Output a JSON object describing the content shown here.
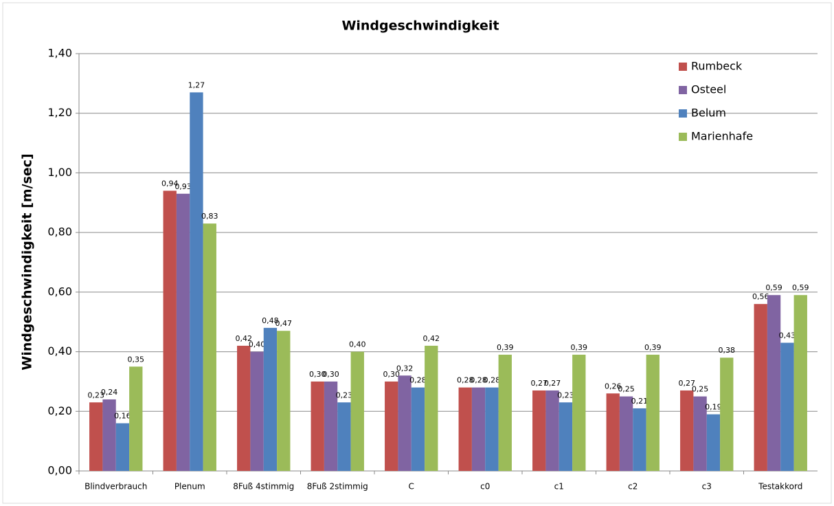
{
  "chart_data": {
    "type": "bar",
    "title": "Windgeschwindigkeit",
    "y_label": "Windgeschwindigkeit [m/sec]",
    "categories": [
      "Blindverbrauch",
      "Plenum",
      "8Fuß 4stimmig",
      "8Fuß 2stimmig",
      "C",
      "c0",
      "c1",
      "c2",
      "c3",
      "Testakkord"
    ],
    "series": [
      {
        "name": "Rumbeck",
        "color": "#c0504d",
        "values": [
          0.23,
          0.94,
          0.42,
          0.3,
          0.3,
          0.28,
          0.27,
          0.26,
          0.27,
          0.56
        ],
        "value_labels": [
          "0,23",
          "0,94",
          "0,42",
          "0,30",
          "0,30",
          "0,28",
          "0,27",
          "0,26",
          "0,27",
          "0,56"
        ]
      },
      {
        "name": "Osteel",
        "color": "#8064a2",
        "values": [
          0.24,
          0.93,
          0.4,
          0.3,
          0.32,
          0.28,
          0.27,
          0.25,
          0.25,
          0.59
        ],
        "value_labels": [
          "0,24",
          "0,93",
          "0,40",
          "0,30",
          "0,32",
          "0,28",
          "0,27",
          "0,25",
          "0,25",
          "0,59"
        ]
      },
      {
        "name": "Belum",
        "color": "#4f81bd",
        "values": [
          0.16,
          1.27,
          0.48,
          0.23,
          0.28,
          0.28,
          0.23,
          0.21,
          0.19,
          0.43
        ],
        "value_labels": [
          "0,16",
          "1,27",
          "0,48",
          "0,23",
          "0,28",
          "0,28",
          "0,23",
          "0,21",
          "0,19",
          "0,43"
        ]
      },
      {
        "name": "Marienhafe",
        "color": "#9bbb59",
        "values": [
          0.35,
          0.83,
          0.47,
          0.4,
          0.42,
          0.39,
          0.39,
          0.39,
          0.38,
          0.59
        ],
        "value_labels": [
          "0,35",
          "0,83",
          "0,47",
          "0,40",
          "0,42",
          "0,39",
          "0,39",
          "0,39",
          "0,38",
          "0,59"
        ]
      }
    ],
    "ylim": [
      0,
      1.4
    ],
    "yticks": [
      {
        "value": 0,
        "label": "0,00"
      },
      {
        "value": 0.2,
        "label": "0,20"
      },
      {
        "value": 0.4,
        "label": "0,40"
      },
      {
        "value": 0.6,
        "label": "0,60"
      },
      {
        "value": 0.8,
        "label": "0,80"
      },
      {
        "value": 1.0,
        "label": "1,00"
      },
      {
        "value": 1.2,
        "label": "1,20"
      },
      {
        "value": 1.4,
        "label": "1,40"
      }
    ],
    "grid": true,
    "legend": "top-right"
  }
}
